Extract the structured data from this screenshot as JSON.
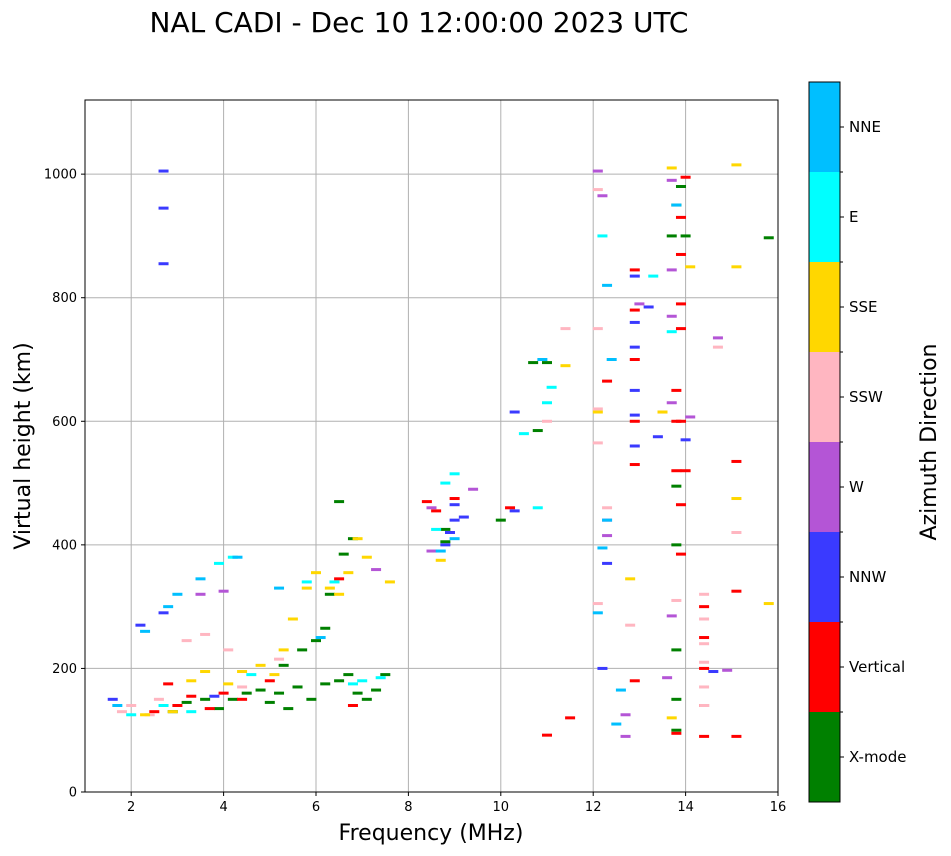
{
  "chart_data": {
    "type": "scatter",
    "title": "NAL CADI - Dec 10 12:00:00 2023 UTC",
    "xlabel": "Frequency (MHz)",
    "ylabel": "Virtual height (km)",
    "xlim": [
      1,
      16
    ],
    "ylim": [
      0,
      1120
    ],
    "xticks": [
      2,
      4,
      6,
      8,
      10,
      12,
      14,
      16
    ],
    "yticks": [
      0,
      200,
      400,
      600,
      800,
      1000
    ],
    "grid": true,
    "colorbar": {
      "label": "Azimuth Direction",
      "categories": [
        {
          "name": "X-mode",
          "color": "#008000"
        },
        {
          "name": "Vertical",
          "color": "#ff0000"
        },
        {
          "name": "NNW",
          "color": "#3a3aff"
        },
        {
          "name": "W",
          "color": "#b455d6"
        },
        {
          "name": "SSW",
          "color": "#ffb6c1"
        },
        {
          "name": "SSE",
          "color": "#ffd700"
        },
        {
          "name": "E",
          "color": "#00ffff"
        },
        {
          "name": "NNE",
          "color": "#00bfff"
        }
      ]
    },
    "series": [
      {
        "name": "X-mode",
        "points": [
          [
            2.9,
            130
          ],
          [
            3.2,
            145
          ],
          [
            3.6,
            150
          ],
          [
            3.9,
            135
          ],
          [
            4.2,
            150
          ],
          [
            4.5,
            160
          ],
          [
            4.8,
            165
          ],
          [
            5.0,
            145
          ],
          [
            5.2,
            160
          ],
          [
            5.4,
            135
          ],
          [
            5.6,
            170
          ],
          [
            5.9,
            150
          ],
          [
            6.2,
            175
          ],
          [
            6.5,
            180
          ],
          [
            6.7,
            190
          ],
          [
            6.9,
            160
          ],
          [
            7.1,
            150
          ],
          [
            7.3,
            165
          ],
          [
            7.5,
            190
          ],
          [
            5.3,
            205
          ],
          [
            5.7,
            230
          ],
          [
            6.0,
            245
          ],
          [
            6.2,
            265
          ],
          [
            6.3,
            320
          ],
          [
            6.6,
            385
          ],
          [
            6.8,
            410
          ],
          [
            6.5,
            470
          ],
          [
            8.8,
            425
          ],
          [
            8.8,
            405
          ],
          [
            10.0,
            440
          ],
          [
            10.7,
            695
          ],
          [
            10.8,
            585
          ],
          [
            11.0,
            695
          ],
          [
            13.8,
            100
          ],
          [
            13.8,
            150
          ],
          [
            13.8,
            230
          ],
          [
            13.8,
            400
          ],
          [
            13.8,
            495
          ],
          [
            13.7,
            900
          ],
          [
            13.8,
            950
          ],
          [
            13.9,
            980
          ],
          [
            14.0,
            900
          ],
          [
            15.8,
            897
          ]
        ]
      },
      {
        "name": "Vertical",
        "points": [
          [
            2.5,
            130
          ],
          [
            2.8,
            175
          ],
          [
            3.0,
            140
          ],
          [
            3.3,
            155
          ],
          [
            3.7,
            135
          ],
          [
            4.0,
            160
          ],
          [
            4.4,
            150
          ],
          [
            5.0,
            180
          ],
          [
            6.5,
            345
          ],
          [
            6.8,
            140
          ],
          [
            8.4,
            470
          ],
          [
            8.6,
            455
          ],
          [
            9.0,
            475
          ],
          [
            10.2,
            460
          ],
          [
            11.0,
            92
          ],
          [
            11.5,
            120
          ],
          [
            12.3,
            665
          ],
          [
            12.9,
            180
          ],
          [
            12.9,
            530
          ],
          [
            12.9,
            600
          ],
          [
            12.9,
            700
          ],
          [
            12.9,
            780
          ],
          [
            12.9,
            845
          ],
          [
            13.5,
            615
          ],
          [
            13.8,
            95
          ],
          [
            13.8,
            520
          ],
          [
            13.8,
            600
          ],
          [
            13.8,
            650
          ],
          [
            13.9,
            385
          ],
          [
            13.9,
            465
          ],
          [
            13.9,
            600
          ],
          [
            13.9,
            750
          ],
          [
            13.9,
            790
          ],
          [
            13.9,
            870
          ],
          [
            13.9,
            930
          ],
          [
            14.0,
            520
          ],
          [
            14.0,
            995
          ],
          [
            14.4,
            90
          ],
          [
            14.4,
            140
          ],
          [
            14.4,
            200
          ],
          [
            14.4,
            250
          ],
          [
            14.4,
            300
          ],
          [
            15.1,
            90
          ],
          [
            15.1,
            325
          ],
          [
            15.1,
            535
          ]
        ]
      },
      {
        "name": "NNW",
        "points": [
          [
            1.6,
            150
          ],
          [
            2.2,
            270
          ],
          [
            2.7,
            290
          ],
          [
            2.7,
            1005
          ],
          [
            2.7,
            945
          ],
          [
            2.7,
            855
          ],
          [
            3.8,
            155
          ],
          [
            8.8,
            400
          ],
          [
            8.9,
            420
          ],
          [
            9.0,
            440
          ],
          [
            9.0,
            465
          ],
          [
            9.2,
            445
          ],
          [
            10.3,
            455
          ],
          [
            10.3,
            615
          ],
          [
            12.2,
            200
          ],
          [
            12.3,
            370
          ],
          [
            12.9,
            560
          ],
          [
            12.9,
            610
          ],
          [
            12.9,
            650
          ],
          [
            12.9,
            720
          ],
          [
            12.9,
            760
          ],
          [
            12.9,
            835
          ],
          [
            13.2,
            785
          ],
          [
            13.4,
            575
          ],
          [
            14.0,
            570
          ],
          [
            14.6,
            195
          ]
        ]
      },
      {
        "name": "W",
        "points": [
          [
            3.5,
            320
          ],
          [
            4.0,
            325
          ],
          [
            7.3,
            360
          ],
          [
            8.5,
            390
          ],
          [
            8.5,
            460
          ],
          [
            9.4,
            490
          ],
          [
            12.1,
            1005
          ],
          [
            12.2,
            965
          ],
          [
            12.3,
            415
          ],
          [
            12.3,
            440
          ],
          [
            12.7,
            90
          ],
          [
            12.7,
            125
          ],
          [
            13.0,
            790
          ],
          [
            13.6,
            185
          ],
          [
            13.7,
            285
          ],
          [
            13.7,
            630
          ],
          [
            13.7,
            770
          ],
          [
            13.7,
            845
          ],
          [
            13.7,
            990
          ],
          [
            14.1,
            607
          ],
          [
            14.7,
            735
          ],
          [
            14.9,
            197
          ]
        ]
      },
      {
        "name": "SSW",
        "points": [
          [
            1.8,
            130
          ],
          [
            2.0,
            140
          ],
          [
            2.4,
            125
          ],
          [
            2.6,
            150
          ],
          [
            3.2,
            245
          ],
          [
            3.6,
            255
          ],
          [
            4.1,
            230
          ],
          [
            4.4,
            170
          ],
          [
            5.2,
            215
          ],
          [
            11.0,
            600
          ],
          [
            11.4,
            750
          ],
          [
            12.1,
            305
          ],
          [
            12.1,
            565
          ],
          [
            12.1,
            620
          ],
          [
            12.1,
            750
          ],
          [
            12.1,
            975
          ],
          [
            12.3,
            460
          ],
          [
            12.8,
            270
          ],
          [
            13.8,
            310
          ],
          [
            14.4,
            140
          ],
          [
            14.4,
            170
          ],
          [
            14.4,
            210
          ],
          [
            14.4,
            240
          ],
          [
            14.4,
            280
          ],
          [
            14.4,
            320
          ],
          [
            14.7,
            720
          ],
          [
            15.1,
            420
          ]
        ]
      },
      {
        "name": "SSE",
        "points": [
          [
            2.3,
            125
          ],
          [
            2.9,
            130
          ],
          [
            3.3,
            180
          ],
          [
            3.6,
            195
          ],
          [
            4.1,
            175
          ],
          [
            4.4,
            195
          ],
          [
            4.8,
            205
          ],
          [
            5.1,
            190
          ],
          [
            5.3,
            230
          ],
          [
            5.5,
            280
          ],
          [
            5.8,
            330
          ],
          [
            6.0,
            355
          ],
          [
            6.3,
            330
          ],
          [
            6.5,
            320
          ],
          [
            6.7,
            355
          ],
          [
            6.9,
            410
          ],
          [
            7.1,
            380
          ],
          [
            7.6,
            340
          ],
          [
            8.7,
            375
          ],
          [
            11.4,
            690
          ],
          [
            12.1,
            615
          ],
          [
            12.8,
            345
          ],
          [
            13.5,
            615
          ],
          [
            13.7,
            1010
          ],
          [
            13.7,
            120
          ],
          [
            14.1,
            850
          ],
          [
            15.1,
            475
          ],
          [
            15.1,
            850
          ],
          [
            15.1,
            1015
          ],
          [
            15.8,
            305
          ]
        ]
      },
      {
        "name": "E",
        "points": [
          [
            2.0,
            125
          ],
          [
            2.7,
            140
          ],
          [
            3.3,
            130
          ],
          [
            3.9,
            370
          ],
          [
            4.2,
            380
          ],
          [
            4.6,
            190
          ],
          [
            5.8,
            340
          ],
          [
            6.4,
            340
          ],
          [
            6.8,
            175
          ],
          [
            7.0,
            180
          ],
          [
            7.4,
            185
          ],
          [
            8.6,
            425
          ],
          [
            8.8,
            500
          ],
          [
            9.0,
            515
          ],
          [
            10.5,
            580
          ],
          [
            10.8,
            460
          ],
          [
            11.0,
            630
          ],
          [
            11.1,
            655
          ],
          [
            12.2,
            900
          ],
          [
            13.3,
            835
          ],
          [
            13.7,
            745
          ]
        ]
      },
      {
        "name": "NNE",
        "points": [
          [
            1.7,
            140
          ],
          [
            2.3,
            260
          ],
          [
            2.8,
            300
          ],
          [
            3.0,
            320
          ],
          [
            3.5,
            345
          ],
          [
            4.3,
            380
          ],
          [
            5.2,
            330
          ],
          [
            6.1,
            250
          ],
          [
            8.7,
            390
          ],
          [
            9.0,
            410
          ],
          [
            10.9,
            700
          ],
          [
            12.1,
            290
          ],
          [
            12.2,
            395
          ],
          [
            12.3,
            440
          ],
          [
            12.3,
            820
          ],
          [
            12.4,
            700
          ],
          [
            12.5,
            110
          ],
          [
            12.6,
            165
          ],
          [
            13.8,
            950
          ]
        ]
      }
    ]
  }
}
